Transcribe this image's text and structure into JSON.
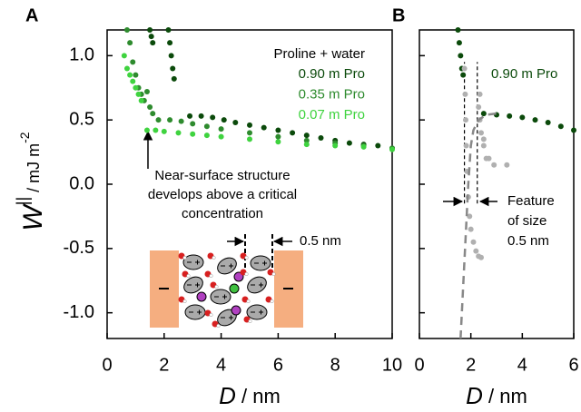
{
  "chart_data": [
    {
      "type": "scatter",
      "panel_label": "A",
      "xlabel": {
        "symbol": "D",
        "unit": " / nm"
      },
      "ylabel": {
        "symbol": "W",
        "symbol_sup": "||",
        "unit": " / mJ m",
        "unit_sup": "-2"
      },
      "xlim": [
        0,
        10
      ],
      "xticks": [
        0,
        2,
        4,
        6,
        8,
        10
      ],
      "ylim": [
        -1.2,
        1.2
      ],
      "yticks": [
        {
          "value": 1.0,
          "label": "1.0"
        },
        0.5,
        {
          "value": 0.0,
          "label": "0.0"
        },
        -0.5,
        {
          "value": -1.0,
          "label": "-1.0"
        }
      ],
      "legend_title": "Proline + water",
      "series": [
        {
          "name": "0.90 m Pro",
          "color": "#0b4a0b",
          "x": [
            1.5,
            1.55,
            1.6,
            2.15,
            2.2,
            2.25,
            2.3,
            2.35,
            2.9,
            3.3,
            3.7,
            4.1,
            4.5,
            5,
            5.5,
            6,
            6.5,
            7,
            7.5,
            8,
            8.5,
            9,
            9.5,
            10
          ],
          "values": [
            1.2,
            1.15,
            1.1,
            1.2,
            1.1,
            1.0,
            0.9,
            0.82,
            0.53,
            0.53,
            0.52,
            0.5,
            0.48,
            0.46,
            0.44,
            0.42,
            0.4,
            0.38,
            0.36,
            0.34,
            0.32,
            0.31,
            0.3,
            0.28
          ]
        },
        {
          "name": "0.35 m Pro",
          "color": "#2e8b2e",
          "x": [
            0.7,
            0.8,
            0.9,
            1.0,
            1.1,
            1.2,
            1.3,
            1.4,
            1.5,
            1.6,
            1.8,
            2.2,
            2.6,
            3,
            3.5,
            4,
            5,
            6,
            7,
            8,
            9,
            10
          ],
          "values": [
            1.2,
            1.1,
            0.95,
            0.85,
            0.75,
            0.7,
            0.65,
            0.72,
            0.6,
            0.55,
            0.5,
            0.5,
            0.49,
            0.47,
            0.45,
            0.43,
            0.4,
            0.37,
            0.34,
            0.32,
            0.3,
            0.28
          ]
        },
        {
          "name": "0.07 m Pro",
          "color": "#3fd33f",
          "x": [
            0.6,
            0.7,
            0.8,
            0.9,
            1.0,
            1.1,
            1.2,
            1.4,
            1.7,
            2,
            2.5,
            3,
            3.5,
            4,
            5,
            6,
            7,
            8,
            9,
            10
          ],
          "values": [
            1.0,
            0.9,
            0.85,
            0.8,
            0.75,
            0.7,
            0.65,
            0.42,
            0.42,
            0.41,
            0.4,
            0.39,
            0.38,
            0.37,
            0.35,
            0.33,
            0.31,
            0.3,
            0.29,
            0.27
          ]
        }
      ],
      "annotation": [
        "Near-surface structure",
        "develops above a critical",
        "concentration"
      ],
      "inset_label": "0.5 nm"
    },
    {
      "type": "scatter",
      "panel_label": "B",
      "xlabel": {
        "symbol": "D",
        "unit": " / nm"
      },
      "xlim": [
        0,
        6
      ],
      "xticks": [
        0,
        2,
        4,
        6
      ],
      "ylim": [
        -1.2,
        1.2
      ],
      "yticks": [
        1.0,
        0.5,
        0.0,
        -0.5,
        -1.0
      ],
      "show_ytick_labels": false,
      "series": [
        {
          "name": "0.90 m Pro",
          "color": "#0b4a0b",
          "x": [
            1.5,
            1.55,
            1.6,
            1.65,
            1.7,
            2.5,
            3,
            3.5,
            4,
            4.5,
            5,
            5.5,
            6
          ],
          "values": [
            1.2,
            1.1,
            1.0,
            0.9,
            0.85,
            0.55,
            0.54,
            0.53,
            0.52,
            0.5,
            0.48,
            0.45,
            0.42
          ]
        },
        {
          "color": "#b0b0b0",
          "x": [
            1.75,
            1.78,
            1.8,
            1.82,
            1.85,
            1.9,
            1.95,
            2.0,
            2.1,
            2.2,
            2.3,
            2.4,
            2.6,
            2.5,
            2.4,
            2.35,
            2.3,
            2.35,
            2.5,
            2.7,
            2.9,
            3.4
          ],
          "values": [
            0.9,
            0.7,
            0.5,
            0.3,
            0.1,
            -0.1,
            -0.25,
            -0.35,
            -0.45,
            -0.52,
            -0.56,
            -0.57,
            0.2,
            0.3,
            0.4,
            0.5,
            0.6,
            0.7,
            0.35,
            0.2,
            0.15,
            0.15
          ]
        },
        {
          "color": "#888888",
          "style": "dashed",
          "x": [
            1.6,
            1.7,
            1.8,
            1.9,
            2.0,
            2.1,
            2.3,
            2.6,
            3.0
          ],
          "values": [
            -1.2,
            -0.8,
            -0.4,
            0.0,
            0.3,
            0.42,
            0.5,
            0.54,
            0.55
          ]
        }
      ],
      "vlines": [
        1.75,
        2.25
      ],
      "vline_ymin": -0.15,
      "vline_ymax": 0.95,
      "annotation": [
        "Feature",
        "of size",
        "0.5 nm"
      ]
    }
  ]
}
